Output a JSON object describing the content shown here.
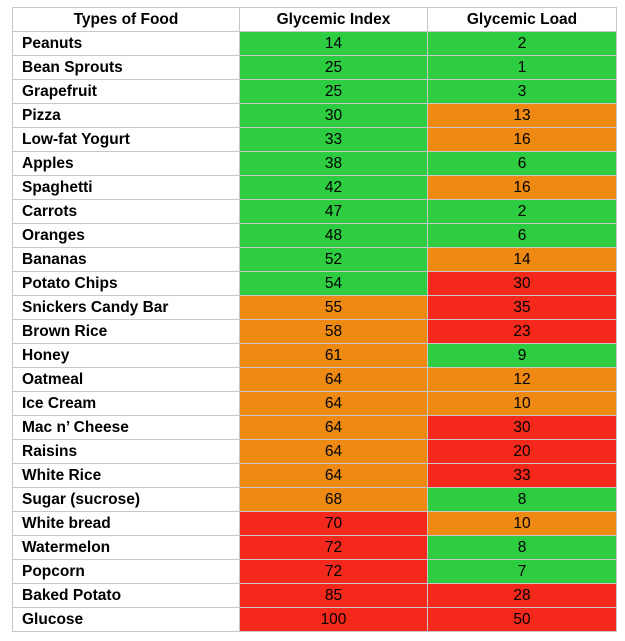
{
  "table": {
    "headers": [
      "Types of Food",
      "Glycemic Index",
      "Glycemic Load"
    ],
    "rows": [
      {
        "food": "Peanuts",
        "gi": "14",
        "gi_level": "low",
        "gl": "2",
        "gl_level": "low"
      },
      {
        "food": "Bean Sprouts",
        "gi": "25",
        "gi_level": "low",
        "gl": "1",
        "gl_level": "low"
      },
      {
        "food": "Grapefruit",
        "gi": "25",
        "gi_level": "low",
        "gl": "3",
        "gl_level": "low"
      },
      {
        "food": "Pizza",
        "gi": "30",
        "gi_level": "low",
        "gl": "13",
        "gl_level": "mid"
      },
      {
        "food": "Low-fat Yogurt",
        "gi": "33",
        "gi_level": "low",
        "gl": "16",
        "gl_level": "mid"
      },
      {
        "food": "Apples",
        "gi": "38",
        "gi_level": "low",
        "gl": "6",
        "gl_level": "low"
      },
      {
        "food": "Spaghetti",
        "gi": "42",
        "gi_level": "low",
        "gl": "16",
        "gl_level": "mid"
      },
      {
        "food": "Carrots",
        "gi": "47",
        "gi_level": "low",
        "gl": "2",
        "gl_level": "low"
      },
      {
        "food": "Oranges",
        "gi": "48",
        "gi_level": "low",
        "gl": "6",
        "gl_level": "low"
      },
      {
        "food": "Bananas",
        "gi": "52",
        "gi_level": "low",
        "gl": "14",
        "gl_level": "mid"
      },
      {
        "food": "Potato Chips",
        "gi": "54",
        "gi_level": "low",
        "gl": "30",
        "gl_level": "high"
      },
      {
        "food": "Snickers Candy Bar",
        "gi": "55",
        "gi_level": "mid",
        "gl": "35",
        "gl_level": "high"
      },
      {
        "food": "Brown Rice",
        "gi": "58",
        "gi_level": "mid",
        "gl": "23",
        "gl_level": "high"
      },
      {
        "food": "Honey",
        "gi": "61",
        "gi_level": "mid",
        "gl": "9",
        "gl_level": "low"
      },
      {
        "food": "Oatmeal",
        "gi": "64",
        "gi_level": "mid",
        "gl": "12",
        "gl_level": "mid"
      },
      {
        "food": "Ice Cream",
        "gi": "64",
        "gi_level": "mid",
        "gl": "10",
        "gl_level": "mid"
      },
      {
        "food": "Mac n’ Cheese",
        "gi": "64",
        "gi_level": "mid",
        "gl": "30",
        "gl_level": "high"
      },
      {
        "food": "Raisins",
        "gi": "64",
        "gi_level": "mid",
        "gl": "20",
        "gl_level": "high"
      },
      {
        "food": "White Rice",
        "gi": "64",
        "gi_level": "mid",
        "gl": "33",
        "gl_level": "high"
      },
      {
        "food": "Sugar (sucrose)",
        "gi": "68",
        "gi_level": "mid",
        "gl": "8",
        "gl_level": "low"
      },
      {
        "food": "White bread",
        "gi": "70",
        "gi_level": "high",
        "gl": "10",
        "gl_level": "mid"
      },
      {
        "food": "Watermelon",
        "gi": "72",
        "gi_level": "high",
        "gl": "8",
        "gl_level": "low"
      },
      {
        "food": "Popcorn",
        "gi": "72",
        "gi_level": "high",
        "gl": "7",
        "gl_level": "low"
      },
      {
        "food": "Baked Potato",
        "gi": "85",
        "gi_level": "high",
        "gl": "28",
        "gl_level": "high"
      },
      {
        "food": "Glucose",
        "gi": "100",
        "gi_level": "high",
        "gl": "50",
        "gl_level": "high"
      }
    ]
  },
  "colors": {
    "low": "#2ecc40",
    "mid": "#ee8a14",
    "high": "#f5281c"
  }
}
